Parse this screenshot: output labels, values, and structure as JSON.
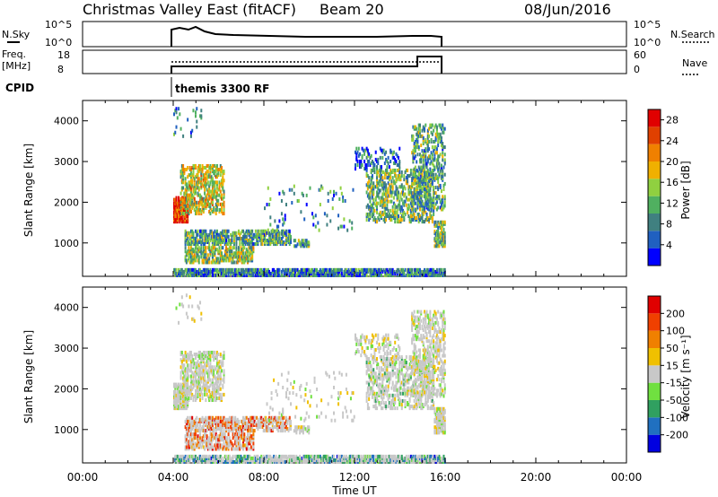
{
  "header": {
    "station": "Christmas Valley East (fitACF)",
    "beam": "Beam 20",
    "date": "08/Jun/2016"
  },
  "params": {
    "nsky_label": "N.Sky",
    "nsky_ticks": [
      "10^5",
      "10^0"
    ],
    "nsearch_label": "N.Search",
    "nsearch_ticks": [
      "10^5",
      "10^0"
    ],
    "freq_label_1": "Freq.",
    "freq_label_2": "[MHz]",
    "freq_ticks": [
      "18",
      "8"
    ],
    "nave_label": "Nave",
    "nave_ticks": [
      "60",
      "0"
    ],
    "cpid_label": "CPID",
    "cpid_value": "themis 3300 RF"
  },
  "chart_data": [
    {
      "type": "heatmap",
      "title": "",
      "ylabel": "Slant Range [km]",
      "yticks": [
        "1000",
        "2000",
        "3000",
        "4000"
      ],
      "ylim": [
        180,
        4500
      ],
      "xlim_hours": [
        0,
        24
      ],
      "colorbar": {
        "label": "Power [dB]",
        "ticks": [
          "4",
          "8",
          "12",
          "16",
          "20",
          "24",
          "28"
        ],
        "range": [
          0,
          30
        ],
        "colors": [
          "#0000ff",
          "#2060c0",
          "#408080",
          "#50b060",
          "#90d040",
          "#f0b000",
          "#f08000",
          "#e04000",
          "#e00000"
        ]
      }
    },
    {
      "type": "heatmap",
      "title": "",
      "ylabel": "Slant Range [km]",
      "yticks": [
        "1000",
        "2000",
        "3000",
        "4000"
      ],
      "ylim": [
        180,
        4500
      ],
      "xlim_hours": [
        0,
        24
      ],
      "colorbar": {
        "label": "Velocity [m s⁻¹]",
        "ticks": [
          "200",
          "100",
          "50",
          "15",
          "-15",
          "-50",
          "-100",
          "-200"
        ],
        "colors": [
          "#0000e0",
          "#2070c0",
          "#30a060",
          "#70e040",
          "#c8c8c8",
          "#f0c000",
          "#f08000",
          "#f04000",
          "#e00000"
        ]
      }
    }
  ],
  "time_axis": {
    "ticks": [
      "00:00",
      "04:00",
      "08:00",
      "12:00",
      "16:00",
      "20:00",
      "00:00"
    ],
    "label": "Time UT"
  }
}
